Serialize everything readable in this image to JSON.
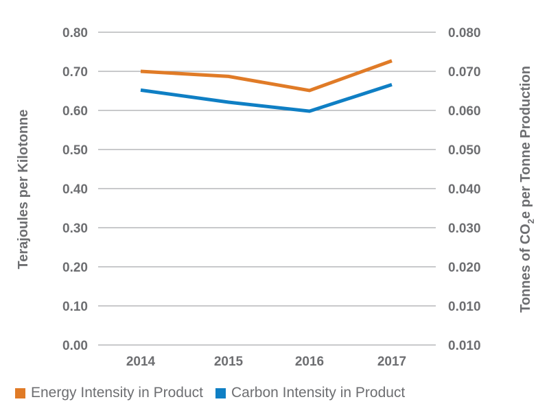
{
  "chart_data": {
    "type": "line",
    "categories": [
      "2014",
      "2015",
      "2016",
      "2017"
    ],
    "y_left": {
      "label": "Terajoules per Kilotonne",
      "ylim": [
        0,
        0.8
      ],
      "ticks": [
        "0.00",
        "0.10",
        "0.20",
        "0.30",
        "0.40",
        "0.50",
        "0.60",
        "0.70",
        "0.80"
      ]
    },
    "y_right": {
      "label_parts": [
        "Tonnes of CO",
        "2",
        "e per Tonne Production"
      ],
      "ylim": [
        0.01,
        0.08
      ],
      "ticks": [
        "0.010",
        "0.010",
        "0.020",
        "0.030",
        "0.040",
        "0.050",
        "0.060",
        "0.070",
        "0.080"
      ]
    },
    "series": [
      {
        "name": "Energy Intensity in Product",
        "axis": "left",
        "color": "#e07b27",
        "values": [
          0.7,
          0.687,
          0.651,
          0.727
        ]
      },
      {
        "name": "Carbon Intensity in Product",
        "axis": "left",
        "color": "#0f7fc4",
        "values": [
          0.652,
          0.621,
          0.598,
          0.666
        ]
      }
    ],
    "grid": true,
    "legend_position": "bottom-left"
  }
}
